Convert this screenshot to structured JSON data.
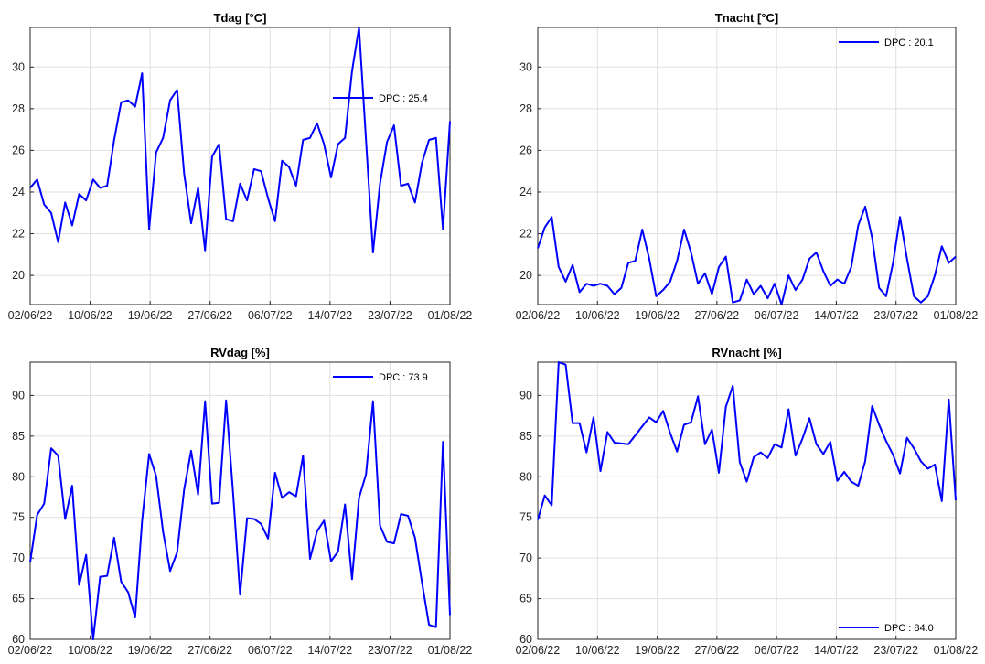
{
  "chart_data": [
    {
      "type": "line",
      "title": "Tdag [°C]",
      "xlabel": "",
      "ylabel": "",
      "x_start": "02/06/22",
      "x_end": "01/08/22",
      "x_tick_labels": [
        "02/06/22",
        "10/06/22",
        "19/06/22",
        "27/06/22",
        "06/07/22",
        "14/07/22",
        "23/07/22",
        "01/08/22"
      ],
      "ylim": [
        18.6,
        31.9
      ],
      "yticks": [
        20,
        22,
        24,
        26,
        28,
        30
      ],
      "grid": true,
      "legend_position": "right",
      "series": [
        {
          "name": "DPC : 25.4",
          "color": "#0000ff",
          "values": [
            24.2,
            24.6,
            23.4,
            23.0,
            21.6,
            23.5,
            22.4,
            23.9,
            23.6,
            24.6,
            24.2,
            24.3,
            26.5,
            28.3,
            28.4,
            28.1,
            29.7,
            22.2,
            25.9,
            26.6,
            28.4,
            28.9,
            24.9,
            22.5,
            24.2,
            21.2,
            25.7,
            26.3,
            22.7,
            22.6,
            24.4,
            23.6,
            25.1,
            25.0,
            23.7,
            22.6,
            25.5,
            25.2,
            24.3,
            26.5,
            26.6,
            27.3,
            26.3,
            24.7,
            26.3,
            26.6,
            29.8,
            31.9,
            26.5,
            21.1,
            24.4,
            26.4,
            27.2,
            24.3,
            24.4,
            23.5,
            25.4,
            26.5,
            26.6,
            22.2,
            27.4
          ]
        }
      ]
    },
    {
      "type": "line",
      "title": "Tnacht [°C]",
      "xlabel": "",
      "ylabel": "",
      "x_start": "02/06/22",
      "x_end": "01/08/22",
      "x_tick_labels": [
        "02/06/22",
        "10/06/22",
        "19/06/22",
        "27/06/22",
        "06/07/22",
        "14/07/22",
        "23/07/22",
        "01/08/22"
      ],
      "ylim": [
        18.6,
        31.9
      ],
      "yticks": [
        20,
        22,
        24,
        26,
        28,
        30
      ],
      "grid": true,
      "legend_position": "top-right",
      "series": [
        {
          "name": "DPC : 20.1",
          "color": "#0000ff",
          "values": [
            21.3,
            22.3,
            22.8,
            20.4,
            19.7,
            20.5,
            19.2,
            19.6,
            19.5,
            19.6,
            19.5,
            19.1,
            19.4,
            20.6,
            20.7,
            22.2,
            20.8,
            19.0,
            19.3,
            19.7,
            20.7,
            22.2,
            21.1,
            19.6,
            20.1,
            19.1,
            20.4,
            20.9,
            18.7,
            18.8,
            19.8,
            19.1,
            19.5,
            18.9,
            19.6,
            18.6,
            20.0,
            19.3,
            19.8,
            20.8,
            21.1,
            20.2,
            19.5,
            19.8,
            19.6,
            20.4,
            22.4,
            23.3,
            21.8,
            19.4,
            19.0,
            20.6,
            22.8,
            20.8,
            19.0,
            18.7,
            19.0,
            20.0,
            21.4,
            20.6,
            20.9
          ]
        }
      ]
    },
    {
      "type": "line",
      "title": "RVdag [%]",
      "xlabel": "",
      "ylabel": "",
      "x_start": "02/06/22",
      "x_end": "01/08/22",
      "x_tick_labels": [
        "02/06/22",
        "10/06/22",
        "19/06/22",
        "27/06/22",
        "06/07/22",
        "14/07/22",
        "23/07/22",
        "01/08/22"
      ],
      "ylim": [
        60,
        94.1
      ],
      "yticks": [
        60,
        65,
        70,
        75,
        80,
        85,
        90
      ],
      "grid": true,
      "legend_position": "top-right",
      "series": [
        {
          "name": "DPC : 73.9",
          "color": "#0000ff",
          "values": [
            69.5,
            75.3,
            76.7,
            83.5,
            82.6,
            74.8,
            78.9,
            66.7,
            70.4,
            60.0,
            67.7,
            67.8,
            72.5,
            67.1,
            65.8,
            62.7,
            74.6,
            82.8,
            80.1,
            73.2,
            68.4,
            70.7,
            78.4,
            83.2,
            77.8,
            89.3,
            76.7,
            76.8,
            89.4,
            78.0,
            65.5,
            74.9,
            74.8,
            74.2,
            72.4,
            80.5,
            77.4,
            78.1,
            77.6,
            82.6,
            69.9,
            73.3,
            74.6,
            69.6,
            70.8,
            76.6,
            67.4,
            77.4,
            80.3,
            89.3,
            74.0,
            72.0,
            71.8,
            75.4,
            75.2,
            72.5,
            67.0,
            61.8,
            61.5,
            84.3,
            63.0
          ]
        }
      ]
    },
    {
      "type": "line",
      "title": "RVnacht [%]",
      "xlabel": "",
      "ylabel": "",
      "x_start": "02/06/22",
      "x_end": "01/08/22",
      "x_tick_labels": [
        "02/06/22",
        "10/06/22",
        "19/06/22",
        "27/06/22",
        "06/07/22",
        "14/07/22",
        "23/07/22",
        "01/08/22"
      ],
      "ylim": [
        60,
        94.1
      ],
      "yticks": [
        60,
        65,
        70,
        75,
        80,
        85,
        90
      ],
      "grid": true,
      "legend_position": "bottom-right",
      "series": [
        {
          "name": "DPC : 84.0",
          "color": "#0000ff",
          "values": [
            74.7,
            77.7,
            76.5,
            94.1,
            93.8,
            86.6,
            86.6,
            83.0,
            87.3,
            80.7,
            85.5,
            84.2,
            84.1,
            84.0,
            null,
            null,
            87.3,
            86.7,
            88.1,
            85.4,
            83.1,
            86.4,
            86.7,
            89.9,
            84.0,
            85.8,
            80.5,
            88.6,
            91.2,
            81.8,
            79.4,
            82.4,
            83.0,
            82.3,
            84.0,
            83.6,
            88.3,
            82.6,
            84.7,
            87.2,
            84.0,
            82.8,
            84.3,
            79.5,
            80.6,
            79.4,
            78.9,
            81.9,
            88.7,
            86.4,
            84.4,
            82.7,
            80.4,
            84.8,
            83.5,
            81.9,
            81.0,
            81.5,
            77.0,
            89.5,
            77.1
          ]
        }
      ]
    }
  ]
}
